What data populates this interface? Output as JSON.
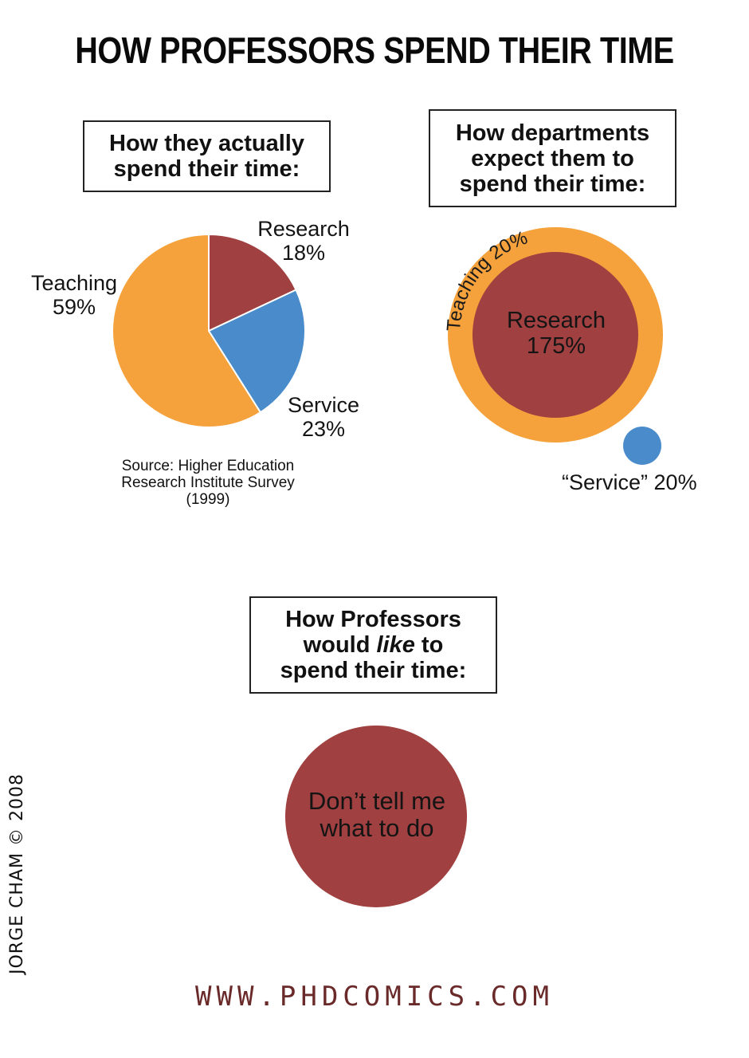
{
  "title": "HOW PROFESSORS SPEND THEIR TIME",
  "colors": {
    "research": "#a04040",
    "service": "#4a8ccb",
    "teaching": "#f5a23c",
    "url": "#6a2a2a"
  },
  "panel_actual": {
    "heading": [
      "How they actually",
      "spend their time:"
    ],
    "source": [
      "Source: Higher Education",
      "Research Institute Survey",
      "(1999)"
    ]
  },
  "panel_expected": {
    "heading": [
      "How departments",
      "expect them to",
      "spend their time:"
    ]
  },
  "panel_like": {
    "heading_l1": "How Professors",
    "heading_l2a": "would ",
    "heading_l2b": "like",
    "heading_l2c": " to",
    "heading_l3": "spend their time:",
    "bubble_text": [
      "Don’t tell me",
      "what to do"
    ]
  },
  "chart_data": [
    {
      "type": "pie",
      "title": "How they actually spend their time:",
      "categories": [
        "Research",
        "Service",
        "Teaching"
      ],
      "values": [
        18,
        23,
        59
      ],
      "labels": [
        {
          "name": "Research",
          "value": "18%"
        },
        {
          "name": "Service",
          "value": "23%"
        },
        {
          "name": "Teaching",
          "value": "59%"
        }
      ]
    },
    {
      "type": "bubble",
      "title": "How departments expect them to spend their time:",
      "categories": [
        "Research",
        "Teaching",
        "“Service”"
      ],
      "values": [
        175,
        20,
        20
      ],
      "labels": [
        {
          "name": "Research",
          "value": "175%"
        },
        {
          "name": "Teaching",
          "value": "20%"
        },
        {
          "name": "“Service”",
          "value": "20%"
        }
      ]
    }
  ],
  "credit": "JORGE CHAM © 2008",
  "url": "WWW.PHDCOMICS.COM"
}
